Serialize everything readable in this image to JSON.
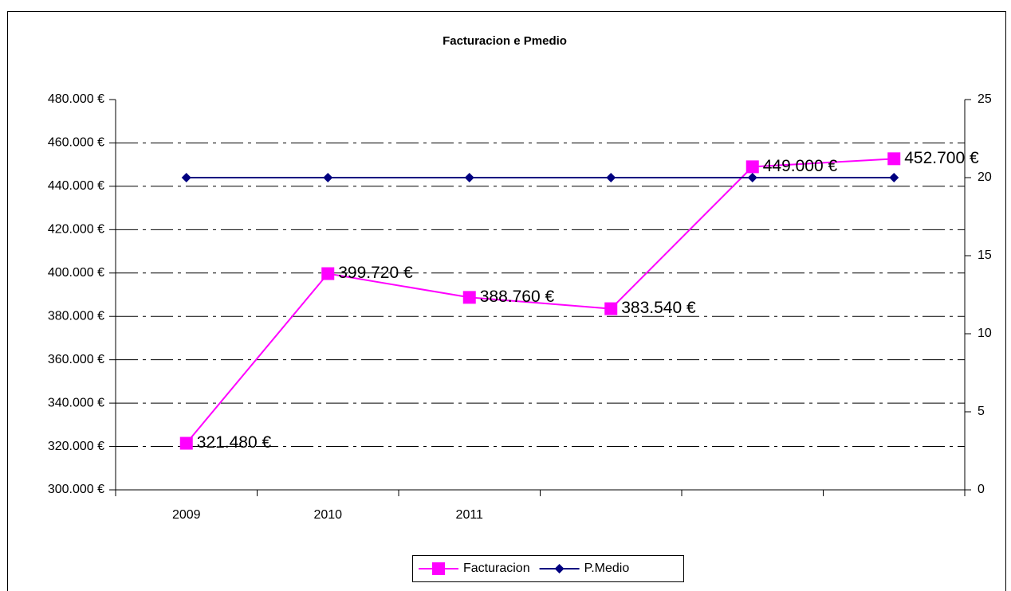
{
  "chart_data": {
    "type": "line",
    "title": "Facturacion e Pmedio",
    "categories": [
      "2009",
      "2010",
      "2011",
      null,
      null,
      null
    ],
    "series": [
      {
        "name": "Facturacion",
        "color": "#ff00ff",
        "marker": "square",
        "values": [
          321480,
          399720,
          388760,
          383540,
          449000,
          452700
        ],
        "value_labels": [
          "321.480 €",
          "399.720 €",
          "388.760 €",
          "383.540 €",
          "449.000 €",
          "452.700 €"
        ]
      },
      {
        "name": "P.Medio",
        "color": "#000080",
        "marker": "diamond",
        "axis": "y2",
        "values": [
          20,
          20,
          20,
          20,
          20,
          20
        ]
      }
    ],
    "ylim": [
      300000,
      480000
    ],
    "yticks": [
      {
        "value": 300000,
        "label": "300.000 €"
      },
      {
        "value": 320000,
        "label": "320.000 €"
      },
      {
        "value": 340000,
        "label": "340.000 €"
      },
      {
        "value": 360000,
        "label": "360.000 €"
      },
      {
        "value": 380000,
        "label": "380.000 €"
      },
      {
        "value": 400000,
        "label": "400.000 €"
      },
      {
        "value": 420000,
        "label": "420.000 €"
      },
      {
        "value": 440000,
        "label": "440.000 €"
      },
      {
        "value": 460000,
        "label": "460.000 €"
      },
      {
        "value": 480000,
        "label": "480.000 €"
      }
    ],
    "y2lim": [
      0,
      25
    ],
    "y2ticks": [
      0,
      5,
      10,
      15,
      20,
      25
    ],
    "grid": true,
    "legend": "bottom"
  }
}
